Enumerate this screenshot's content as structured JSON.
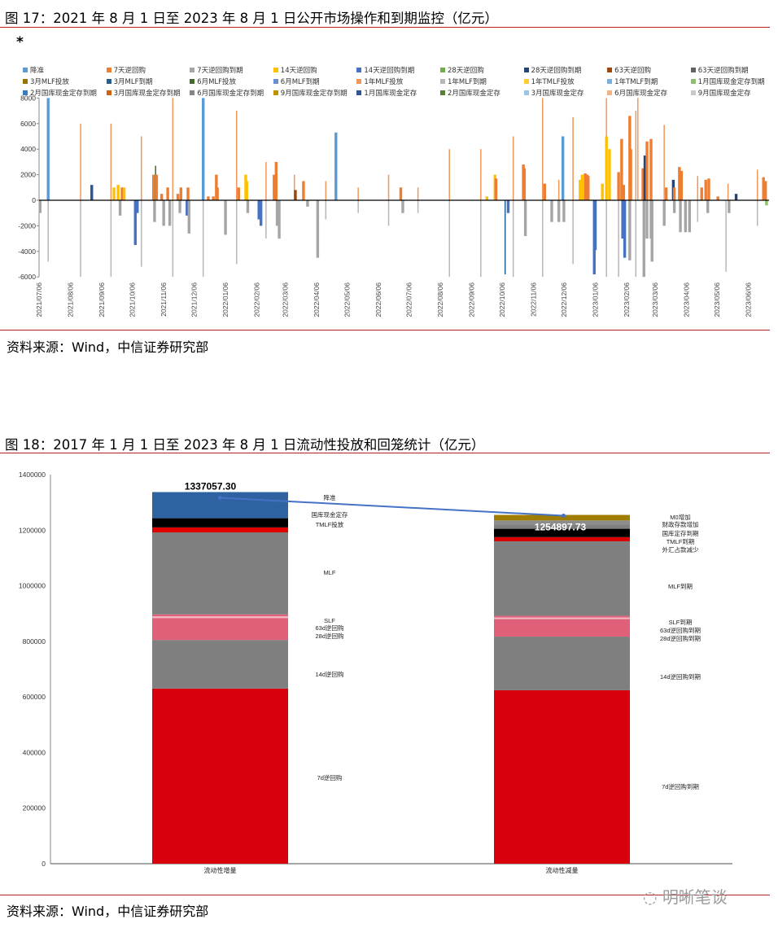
{
  "figure17": {
    "title": "图 17：2021 年 8 月 1 日至 2023 年 8 月 1 日公开市场操作和到期监控（亿元）",
    "note_mark": "*",
    "source": "资料来源：Wind，中信证券研究部"
  },
  "figure18": {
    "title": "图 18：2017 年 1 月 1 日至 2023 年 8 月 1 日流动性投放和回笼统计（亿元）",
    "source": "资料来源：Wind，中信证券研究部"
  },
  "watermark": "明晰笔谈",
  "chart_data": [
    {
      "type": "bar",
      "title": "",
      "xlabel": "",
      "ylabel": "",
      "ylim": [
        -6000,
        8000
      ],
      "yticks": [
        "8000",
        "6000",
        "4000",
        "2000",
        "0",
        "-2000",
        "-4000",
        "-6000"
      ],
      "xlim": [
        "2021-07-06",
        "2023-07-31"
      ],
      "xticks": [
        "2021/07/06",
        "2021/08/06",
        "2021/09/06",
        "2021/10/06",
        "2021/11/06",
        "2021/12/06",
        "2022/01/06",
        "2022/02/06",
        "2022/03/06",
        "2022/04/06",
        "2022/05/06",
        "2022/06/06",
        "2022/07/06",
        "2022/08/06",
        "2022/09/06",
        "2022/10/06",
        "2022/11/06",
        "2022/12/06",
        "2023/01/06",
        "2023/02/06",
        "2023/03/06",
        "2023/04/06",
        "2023/05/06",
        "2023/06/06"
      ],
      "grid": false,
      "legend_position": "top",
      "series": [
        {
          "name": "降准",
          "color": "#5b9bd5"
        },
        {
          "name": "7天逆回购",
          "color": "#ed7d31"
        },
        {
          "name": "7天逆回购到期",
          "color": "#a5a5a5"
        },
        {
          "name": "14天逆回购",
          "color": "#ffc000"
        },
        {
          "name": "14天逆回购到期",
          "color": "#4472c4"
        },
        {
          "name": "28天逆回购",
          "color": "#70ad47"
        },
        {
          "name": "28天逆回购到期",
          "color": "#264478"
        },
        {
          "name": "63天逆回购",
          "color": "#9e480e"
        },
        {
          "name": "63天逆回购到期",
          "color": "#636363"
        },
        {
          "name": "3月MLF投放",
          "color": "#997300"
        },
        {
          "name": "3月MLF到期",
          "color": "#255e91"
        },
        {
          "name": "6月MLF投放",
          "color": "#43682b"
        },
        {
          "name": "6月MLF到期",
          "color": "#698ed0"
        },
        {
          "name": "1年MLF投放",
          "color": "#f1975a"
        },
        {
          "name": "1年MLF到期",
          "color": "#b7b7b7"
        },
        {
          "name": "1年TMLF投放",
          "color": "#ffcd33"
        },
        {
          "name": "1年TMLF到期",
          "color": "#7cafdd"
        },
        {
          "name": "1月国库现金定存到期",
          "color": "#8cc168"
        },
        {
          "name": "2月国库现金定存到期",
          "color": "#327dc2"
        },
        {
          "name": "3月国库现金定存到期",
          "color": "#d26012"
        },
        {
          "name": "6月国库现金定存到期",
          "color": "#848484"
        },
        {
          "name": "9月国库现金定存到期",
          "color": "#c09200"
        },
        {
          "name": "1月国库现金定存",
          "color": "#2f5597"
        },
        {
          "name": "2月国库现金定存",
          "color": "#548235"
        },
        {
          "name": "3月国库现金定存",
          "color": "#9dc3e6"
        },
        {
          "name": "6月国库现金定存",
          "color": "#f4b183"
        },
        {
          "name": "9月国库现金定存",
          "color": "#c9c9c9"
        }
      ],
      "bars": [
        [
          "2021-07-07",
          "7天逆回购到期",
          -1000
        ],
        [
          "2021-07-15",
          "降准",
          10000
        ],
        [
          "2021-07-15",
          "1年MLF到期",
          -4800
        ],
        [
          "2021-08-16",
          "1年MLF投放",
          6000
        ],
        [
          "2021-08-16",
          "1年MLF到期",
          -7000
        ],
        [
          "2021-08-27",
          "1月国库现金定存",
          1200
        ],
        [
          "2021-09-15",
          "1年MLF投放",
          6000
        ],
        [
          "2021-09-15",
          "1年MLF到期",
          -6000
        ],
        [
          "2021-09-18",
          "14天逆回购",
          1000
        ],
        [
          "2021-09-22",
          "14天逆回购",
          1200
        ],
        [
          "2021-09-26",
          "7天逆回购",
          1000
        ],
        [
          "2021-09-28",
          "14天逆回购",
          1000
        ],
        [
          "2021-09-24",
          "7天逆回购到期",
          -1200
        ],
        [
          "2021-10-09",
          "14天逆回购到期",
          -3500
        ],
        [
          "2021-10-11",
          "14天逆回购到期",
          -1000
        ],
        [
          "2021-10-15",
          "1年MLF投放",
          5000
        ],
        [
          "2021-10-15",
          "1年MLF到期",
          -5200
        ],
        [
          "2021-10-27",
          "7天逆回购",
          2000
        ],
        [
          "2021-10-29",
          "6月MLF投放",
          2700
        ],
        [
          "2021-10-30",
          "7天逆回购",
          2000
        ],
        [
          "2021-10-28",
          "7天逆回购到期",
          -1700
        ],
        [
          "2021-11-04",
          "7天逆回购",
          500
        ],
        [
          "2021-11-06",
          "7天逆回购到期",
          -2000
        ],
        [
          "2021-11-10",
          "7天逆回购",
          1000
        ],
        [
          "2021-11-12",
          "7天逆回购到期",
          -2000
        ],
        [
          "2021-11-15",
          "1年MLF投放",
          10000
        ],
        [
          "2021-11-15",
          "1年MLF到期",
          -6000
        ],
        [
          "2021-11-20",
          "7天逆回购",
          500
        ],
        [
          "2021-11-23",
          "7天逆回购",
          1000
        ],
        [
          "2021-11-22",
          "7天逆回购到期",
          -1000
        ],
        [
          "2021-11-29",
          "14天逆回购到期",
          -1200
        ],
        [
          "2021-11-30",
          "7天逆回购",
          1000
        ],
        [
          "2021-12-01",
          "7天逆回购到期",
          -2600
        ],
        [
          "2021-12-15",
          "降准",
          12000
        ],
        [
          "2021-12-15",
          "1年MLF到期",
          -6000
        ],
        [
          "2021-12-20",
          "7天逆回购",
          300
        ],
        [
          "2021-12-25",
          "7天逆回购",
          300
        ],
        [
          "2021-12-28",
          "7天逆回购",
          2000
        ],
        [
          "2021-12-29",
          "7天逆回购",
          1000
        ],
        [
          "2022-01-06",
          "7天逆回购到期",
          -2700
        ],
        [
          "2022-01-17",
          "1年MLF投放",
          7000
        ],
        [
          "2022-01-17",
          "1年MLF到期",
          -5000
        ],
        [
          "2022-01-19",
          "7天逆回购",
          1000
        ],
        [
          "2022-01-26",
          "14天逆回购",
          2000
        ],
        [
          "2022-01-27",
          "14天逆回购",
          1500
        ],
        [
          "2022-01-28",
          "7天逆回购到期",
          -1000
        ],
        [
          "2022-02-08",
          "14天逆回购到期",
          -1500
        ],
        [
          "2022-02-10",
          "14天逆回购到期",
          -2000
        ],
        [
          "2022-02-15",
          "1年MLF投放",
          3000
        ],
        [
          "2022-02-15",
          "1年MLF到期",
          -3000
        ],
        [
          "2022-02-23",
          "7天逆回购",
          2000
        ],
        [
          "2022-02-25",
          "7天逆回购",
          3000
        ],
        [
          "2022-02-26",
          "7天逆回购到期",
          -2000
        ],
        [
          "2022-02-28",
          "7天逆回购到期",
          -3000
        ],
        [
          "2022-03-15",
          "1年MLF投放",
          2000
        ],
        [
          "2022-03-16",
          "63天逆回购",
          800
        ],
        [
          "2022-03-24",
          "7天逆回购",
          1500
        ],
        [
          "2022-03-28",
          "7天逆回购到期",
          -500
        ],
        [
          "2022-04-07",
          "7天逆回购到期",
          -4500
        ],
        [
          "2022-04-15",
          "1年MLF投放",
          1500
        ],
        [
          "2022-04-15",
          "1年MLF到期",
          -1500
        ],
        [
          "2022-04-25",
          "降准",
          5300
        ],
        [
          "2022-05-17",
          "1年MLF投放",
          1000
        ],
        [
          "2022-05-17",
          "1年MLF到期",
          -1000
        ],
        [
          "2022-06-16",
          "1年MLF投放",
          2000
        ],
        [
          "2022-06-16",
          "1年MLF到期",
          -2000
        ],
        [
          "2022-06-28",
          "7天逆回购",
          1000
        ],
        [
          "2022-06-30",
          "7天逆回购到期",
          -1000
        ],
        [
          "2022-07-15",
          "1年MLF投放",
          1000
        ],
        [
          "2022-07-15",
          "1年MLF到期",
          -1000
        ],
        [
          "2022-08-15",
          "1年MLF投放",
          4000
        ],
        [
          "2022-08-15",
          "1年MLF到期",
          -6000
        ],
        [
          "2022-09-15",
          "1年MLF投放",
          4000
        ],
        [
          "2022-09-15",
          "1年MLF到期",
          -6000
        ],
        [
          "2022-09-21",
          "14天逆回购",
          300
        ],
        [
          "2022-09-29",
          "14天逆回购",
          2000
        ],
        [
          "2022-09-30",
          "7天逆回购",
          1700
        ],
        [
          "2022-10-09",
          "3月MLF到期",
          -5800
        ],
        [
          "2022-10-12",
          "14天逆回购到期",
          -1000
        ],
        [
          "2022-10-17",
          "1年MLF投放",
          5000
        ],
        [
          "2022-10-17",
          "1年MLF到期",
          -6000
        ],
        [
          "2022-10-27",
          "7天逆回购",
          2800
        ],
        [
          "2022-10-28",
          "7天逆回购",
          2500
        ],
        [
          "2022-10-29",
          "7天逆回购到期",
          -2800
        ],
        [
          "2022-11-15",
          "1年MLF投放",
          8500
        ],
        [
          "2022-11-15",
          "1年MLF到期",
          -6000
        ],
        [
          "2022-11-17",
          "7天逆回购",
          1300
        ],
        [
          "2022-11-24",
          "7天逆回购到期",
          -1700
        ],
        [
          "2022-12-01",
          "1年MLF投放",
          1600
        ],
        [
          "2022-12-01",
          "7天逆回购到期",
          -1700
        ],
        [
          "2022-12-05",
          "降准",
          5000
        ],
        [
          "2022-12-06",
          "7天逆回购到期",
          -1700
        ],
        [
          "2022-12-15",
          "1年MLF投放",
          6500
        ],
        [
          "2022-12-15",
          "1年MLF到期",
          -5000
        ],
        [
          "2022-12-22",
          "14天逆回购",
          1600
        ],
        [
          "2022-12-24",
          "14天逆回购",
          2000
        ],
        [
          "2022-12-27",
          "7天逆回购",
          2100
        ],
        [
          "2022-12-29",
          "7天逆回购",
          2000
        ],
        [
          "2022-12-30",
          "7天逆回购",
          1900
        ],
        [
          "2023-01-05",
          "14天逆回购到期",
          -5800
        ],
        [
          "2023-01-06",
          "14天逆回购到期",
          -3900
        ],
        [
          "2023-01-13",
          "14天逆回购",
          1300
        ],
        [
          "2023-01-17",
          "1年MLF投放",
          8000
        ],
        [
          "2023-01-17",
          "14天逆回购",
          5000
        ],
        [
          "2023-01-17",
          "1年MLF到期",
          -6000
        ],
        [
          "2023-01-20",
          "14天逆回购",
          4000
        ],
        [
          "2023-01-29",
          "7天逆回购",
          2200
        ],
        [
          "2023-01-29",
          "1年MLF到期",
          -6000
        ],
        [
          "2023-02-01",
          "7天逆回购",
          4800
        ],
        [
          "2023-02-03",
          "7天逆回购",
          1200
        ],
        [
          "2023-02-02",
          "14天逆回购到期",
          -3000
        ],
        [
          "2023-02-04",
          "14天逆回购到期",
          -4500
        ],
        [
          "2023-02-09",
          "7天逆回购",
          6600
        ],
        [
          "2023-02-10",
          "7天逆回购",
          4000
        ],
        [
          "2023-02-09",
          "7天逆回购到期",
          -4700
        ],
        [
          "2023-02-15",
          "1年MLF投放",
          7000
        ],
        [
          "2023-02-15",
          "1年MLF到期",
          -6000
        ],
        [
          "2023-02-17",
          "1年MLF投放",
          8000
        ],
        [
          "2023-02-22",
          "7天逆回购",
          2500
        ],
        [
          "2023-02-24",
          "28天逆回购到期",
          3500
        ],
        [
          "2023-02-26",
          "7天逆回购",
          4600
        ],
        [
          "2023-02-23",
          "7天逆回购到期",
          -6000
        ],
        [
          "2023-02-26",
          "7天逆回购到期",
          -3000
        ],
        [
          "2023-03-02",
          "7天逆回购",
          4800
        ],
        [
          "2023-03-02",
          "7天逆回购到期",
          -3000
        ],
        [
          "2023-03-03",
          "7天逆回购到期",
          -4800
        ],
        [
          "2023-03-15",
          "1年MLF投放",
          5900
        ],
        [
          "2023-03-15",
          "7天逆回购到期",
          -2000
        ],
        [
          "2023-03-17",
          "7天逆回购",
          1000
        ],
        [
          "2023-03-24",
          "28天逆回购到期",
          1600
        ],
        [
          "2023-03-25",
          "7天逆回购",
          1000
        ],
        [
          "2023-03-25",
          "7天逆回购到期",
          -1000
        ],
        [
          "2023-03-30",
          "7天逆回购",
          2600
        ],
        [
          "2023-04-01",
          "7天逆回购",
          2300
        ],
        [
          "2023-03-31",
          "7天逆回购到期",
          -2500
        ],
        [
          "2023-04-05",
          "7天逆回购到期",
          -2500
        ],
        [
          "2023-04-09",
          "7天逆回购到期",
          -2500
        ],
        [
          "2023-04-17",
          "1年MLF投放",
          1900
        ],
        [
          "2023-04-17",
          "1年MLF到期",
          -1700
        ],
        [
          "2023-04-21",
          "7天逆回购",
          1000
        ],
        [
          "2023-04-25",
          "7天逆回购",
          1600
        ],
        [
          "2023-04-28",
          "7天逆回购",
          1700
        ],
        [
          "2023-04-27",
          "7天逆回购到期",
          -1000
        ],
        [
          "2023-05-07",
          "7天逆回购",
          300
        ],
        [
          "2023-05-15",
          "1年MLF到期",
          -5600
        ],
        [
          "2023-05-17",
          "1年MLF投放",
          1300
        ],
        [
          "2023-05-18",
          "7天逆回购到期",
          -1000
        ],
        [
          "2023-05-25",
          "28天逆回购到期",
          500
        ],
        [
          "2023-06-15",
          "1年MLF投放",
          2400
        ],
        [
          "2023-06-15",
          "1年MLF到期",
          -2000
        ],
        [
          "2023-06-21",
          "7天逆回购",
          1800
        ],
        [
          "2023-06-23",
          "7天逆回购",
          1500
        ],
        [
          "2023-06-24",
          "1月国库现金定存到期",
          -400
        ]
      ]
    },
    {
      "type": "bar",
      "stacked": true,
      "title": "",
      "xlabel": "",
      "ylabel": "",
      "ylim": [
        0,
        1400000
      ],
      "yticks": [
        "1400000",
        "1200000",
        "1000000",
        "800000",
        "600000",
        "400000",
        "200000",
        "0"
      ],
      "grid": false,
      "categories": [
        "流动性增量",
        "流动性减量"
      ],
      "totals": [
        "1337057.30",
        "1254897.73"
      ],
      "total_line_color": "#4472c4",
      "stacks": [
        [
          {
            "name": "7d逆回购",
            "value": 630000,
            "color": "#d9000d"
          },
          {
            "name": "14d逆回购",
            "value": 175000,
            "color": "#7f7f7f"
          },
          {
            "name": "28d逆回购",
            "value": 79000,
            "color": "#e0607a"
          },
          {
            "name": "63d逆回购",
            "value": 6000,
            "color": "#f2b8c2"
          },
          {
            "name": "SLF",
            "value": 7000,
            "color": "#e0607a"
          },
          {
            "name": "MLF",
            "value": 295000,
            "color": "#7f7f7f"
          },
          {
            "name": "TMLF投放",
            "value": 18000,
            "color": "#e00000"
          },
          {
            "name": "国库现金定存",
            "value": 33000,
            "color": "#000000"
          },
          {
            "name": "降准",
            "value": 94057.3,
            "color": "#2e62a0"
          }
        ],
        [
          {
            "name": "7d逆回购到期",
            "value": 624000,
            "color": "#d9000d"
          },
          {
            "name": "14d逆回购到期",
            "value": 193000,
            "color": "#7f7f7f"
          },
          {
            "name": "28d逆回购到期",
            "value": 63000,
            "color": "#e0607a"
          },
          {
            "name": "63d逆回购到期",
            "value": 6000,
            "color": "#f2b8c2"
          },
          {
            "name": "SLF到期",
            "value": 6000,
            "color": "#e0607a"
          },
          {
            "name": "MLF到期",
            "value": 268000,
            "color": "#7f7f7f"
          },
          {
            "name": "外汇占款减少",
            "value": 15000,
            "color": "#d90000"
          },
          {
            "name": "TMLF到期",
            "value": 30000,
            "color": "#000000"
          },
          {
            "name": "国库定存到期",
            "value": 15000,
            "color": "#7f7f7f"
          },
          {
            "name": "财政存款增加",
            "value": 15000,
            "color": "#8c8c8c"
          },
          {
            "name": "M0增加",
            "value": 19897.73,
            "color": "#a07d00"
          }
        ]
      ]
    }
  ]
}
